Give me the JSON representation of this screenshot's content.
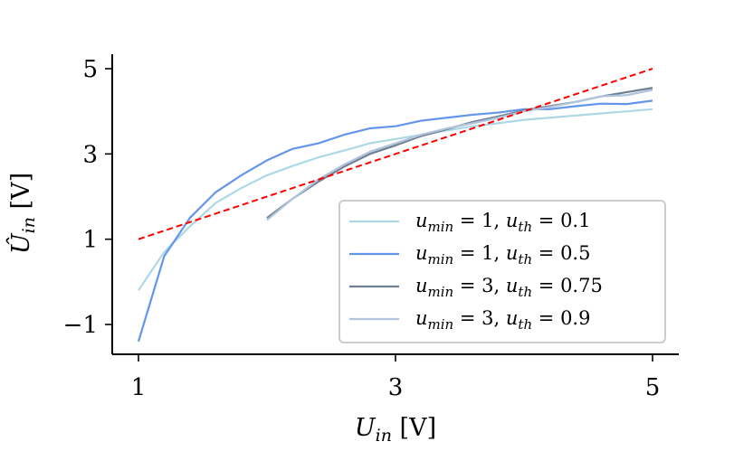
{
  "chart_data": {
    "type": "line",
    "xlabel": "U_in [V]",
    "ylabel": "Û_in [V]",
    "xlim": [
      0.9,
      5.2
    ],
    "ylim": [
      -1.7,
      5.3
    ],
    "xticks": [
      1,
      3,
      5
    ],
    "yticks": [
      -1,
      1,
      3,
      5
    ],
    "xtick_labels": [
      "1",
      "3",
      "5"
    ],
    "ytick_labels": [
      "−1",
      "1",
      "3",
      "5"
    ],
    "grid": false,
    "legend_position": "lower-right",
    "series": [
      {
        "name": "u_min = 1, u_th = 0.1",
        "color": "#add8e6",
        "style": "solid",
        "x": [
          1.0,
          1.2,
          1.4,
          1.6,
          1.8,
          2.0,
          2.2,
          2.4,
          2.6,
          2.8,
          3.0,
          3.2,
          3.4,
          3.6,
          3.8,
          4.0,
          4.2,
          4.4,
          4.6,
          4.8,
          5.0
        ],
        "y": [
          -0.2,
          0.7,
          1.3,
          1.85,
          2.2,
          2.5,
          2.72,
          2.92,
          3.08,
          3.25,
          3.35,
          3.45,
          3.55,
          3.65,
          3.72,
          3.8,
          3.85,
          3.9,
          3.95,
          4.0,
          4.05
        ]
      },
      {
        "name": "u_min = 1, u_th = 0.5",
        "color": "#6495ed",
        "style": "solid",
        "x": [
          1.0,
          1.2,
          1.4,
          1.6,
          1.8,
          2.0,
          2.2,
          2.4,
          2.6,
          2.8,
          3.0,
          3.2,
          3.4,
          3.6,
          3.8,
          4.0,
          4.2,
          4.4,
          4.6,
          4.8,
          5.0
        ],
        "y": [
          -1.4,
          0.6,
          1.5,
          2.1,
          2.5,
          2.85,
          3.12,
          3.25,
          3.45,
          3.6,
          3.65,
          3.78,
          3.85,
          3.92,
          3.97,
          4.05,
          4.05,
          4.12,
          4.18,
          4.17,
          4.25
        ]
      },
      {
        "name": "u_min = 3, u_th = 0.75",
        "color": "#708090",
        "style": "solid",
        "x": [
          2.0,
          2.2,
          2.4,
          2.6,
          2.8,
          3.0,
          3.2,
          3.4,
          3.6,
          3.8,
          4.0,
          4.2,
          4.4,
          4.6,
          4.8,
          5.0
        ],
        "y": [
          1.5,
          1.95,
          2.35,
          2.7,
          3.0,
          3.2,
          3.42,
          3.58,
          3.75,
          3.88,
          4.02,
          4.12,
          4.22,
          4.35,
          4.45,
          4.55
        ]
      },
      {
        "name": "u_min = 3, u_th = 0.9",
        "color": "#b0c4de",
        "style": "solid",
        "x": [
          2.0,
          2.2,
          2.4,
          2.6,
          2.8,
          3.0,
          3.2,
          3.4,
          3.6,
          3.8,
          4.0,
          4.2,
          4.4,
          4.6,
          4.8,
          5.0
        ],
        "y": [
          1.45,
          1.95,
          2.4,
          2.75,
          3.05,
          3.25,
          3.45,
          3.6,
          3.72,
          3.85,
          4.0,
          4.1,
          4.22,
          4.35,
          4.38,
          4.5
        ]
      },
      {
        "color": "#ff0000",
        "style": "dashed",
        "x": [
          1.0,
          5.0
        ],
        "y": [
          1.0,
          5.0
        ]
      }
    ],
    "legend": [
      {
        "series_index": 0,
        "var1": "u",
        "sub1": "min",
        "rel1": " = 1, ",
        "var2": "u",
        "sub2": "th",
        "rel2": " = 0.1"
      },
      {
        "series_index": 1,
        "var1": "u",
        "sub1": "min",
        "rel1": " = 1, ",
        "var2": "u",
        "sub2": "th",
        "rel2": " = 0.5"
      },
      {
        "series_index": 2,
        "var1": "u",
        "sub1": "min",
        "rel1": " = 3, ",
        "var2": "u",
        "sub2": "th",
        "rel2": " = 0.75"
      },
      {
        "series_index": 3,
        "var1": "u",
        "sub1": "min",
        "rel1": " = 3, ",
        "var2": "u",
        "sub2": "th",
        "rel2": " = 0.9"
      }
    ],
    "axis_text": {
      "x_var": "U",
      "x_sub": "in",
      "x_unit": " [V]",
      "y_var": "Û",
      "y_sub": "in",
      "y_unit": " [V]"
    }
  }
}
